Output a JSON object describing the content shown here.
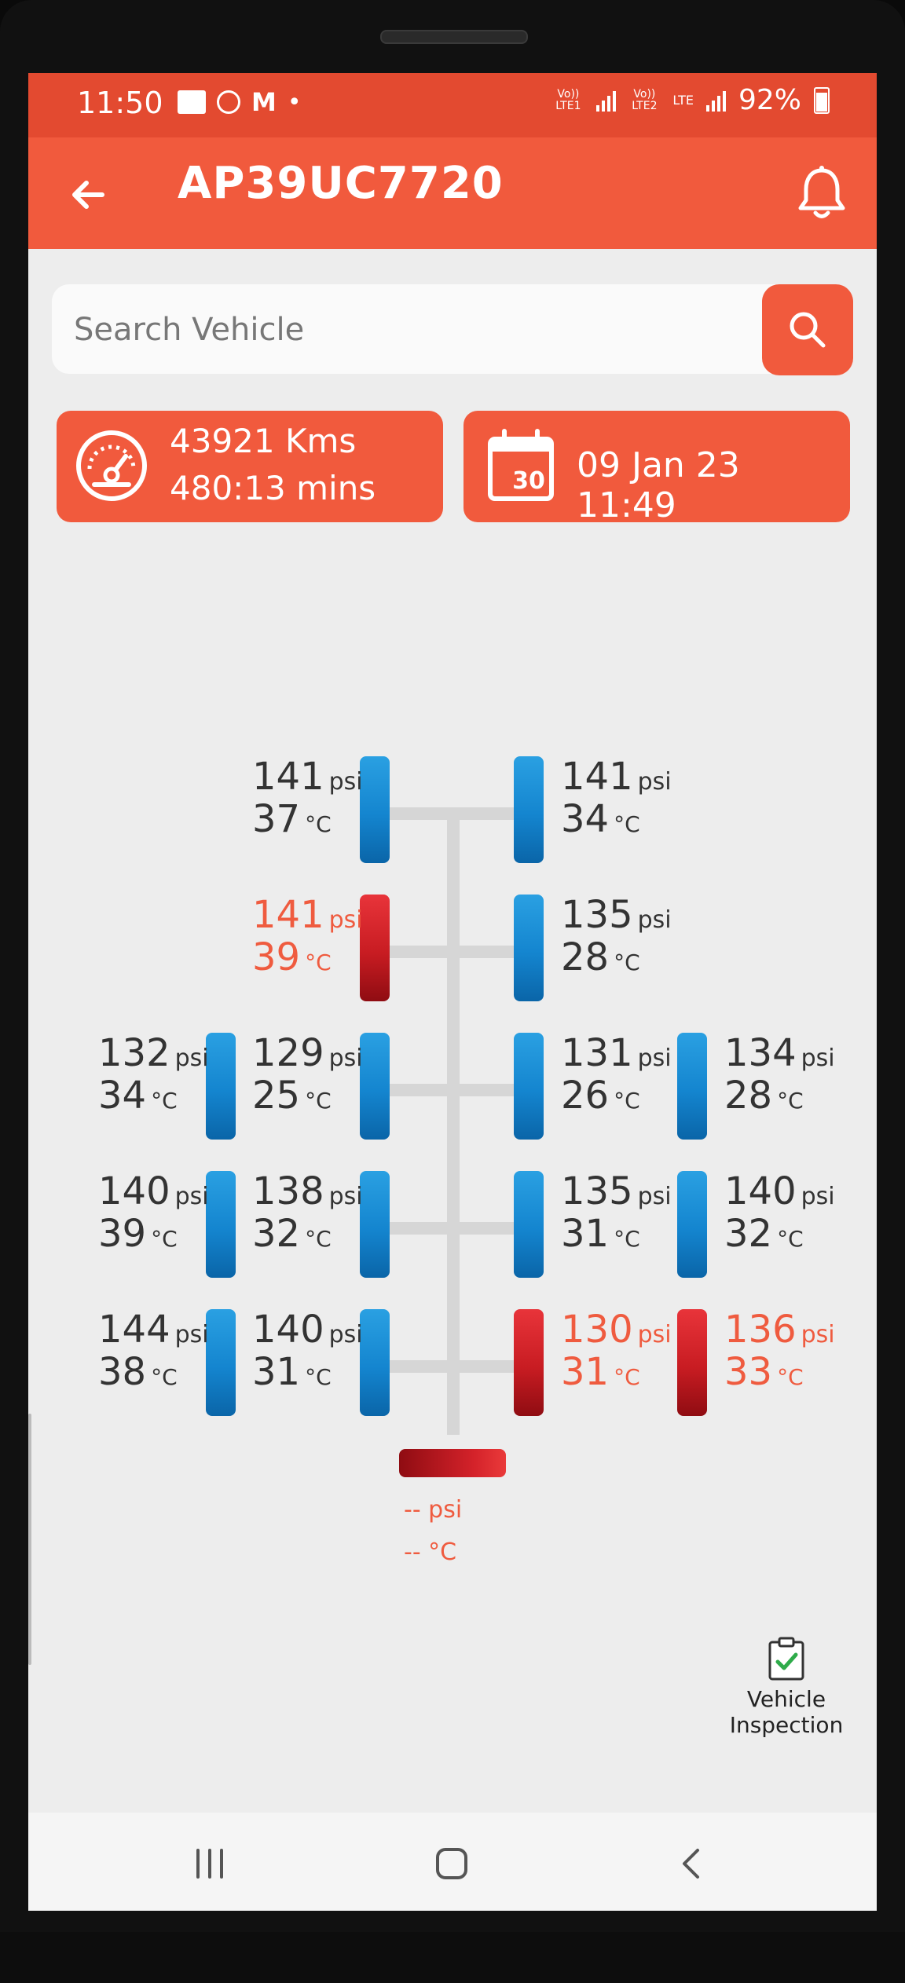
{
  "status_bar": {
    "time": "11:50",
    "network_1": "Vo)) LTE1",
    "network_2": "Vo)) LTE2",
    "network_type": "LTE",
    "battery": "92%"
  },
  "app_bar": {
    "title": "AP39UC7720"
  },
  "search": {
    "placeholder": "Search Vehicle"
  },
  "odometer_card": {
    "distance": "43921 Kms",
    "duration": "480:13 mins"
  },
  "date_card": {
    "calendar_day": "30",
    "timestamp": "09 Jan 23 11:49"
  },
  "units": {
    "pressure": "psi",
    "temperature": "°C"
  },
  "tires": [
    {
      "id": "1L",
      "psi": "141",
      "temp": "37",
      "alert": false
    },
    {
      "id": "1R",
      "psi": "141",
      "temp": "34",
      "alert": false
    },
    {
      "id": "2L",
      "psi": "141",
      "temp": "39",
      "alert": true
    },
    {
      "id": "2R",
      "psi": "135",
      "temp": "28",
      "alert": false
    },
    {
      "id": "3LO",
      "psi": "132",
      "temp": "34",
      "alert": false
    },
    {
      "id": "3LI",
      "psi": "129",
      "temp": "25",
      "alert": false
    },
    {
      "id": "3RI",
      "psi": "131",
      "temp": "26",
      "alert": false
    },
    {
      "id": "3RO",
      "psi": "134",
      "temp": "28",
      "alert": false
    },
    {
      "id": "4LO",
      "psi": "140",
      "temp": "39",
      "alert": false
    },
    {
      "id": "4LI",
      "psi": "138",
      "temp": "32",
      "alert": false
    },
    {
      "id": "4RI",
      "psi": "135",
      "temp": "31",
      "alert": false
    },
    {
      "id": "4RO",
      "psi": "140",
      "temp": "32",
      "alert": false
    },
    {
      "id": "5LO",
      "psi": "144",
      "temp": "38",
      "alert": false
    },
    {
      "id": "5LI",
      "psi": "140",
      "temp": "31",
      "alert": false
    },
    {
      "id": "5RI",
      "psi": "130",
      "temp": "31",
      "alert": true
    },
    {
      "id": "5RO",
      "psi": "136",
      "temp": "33",
      "alert": true
    }
  ],
  "spare": {
    "psi": "-- psi",
    "temp": "-- °C",
    "alert": true
  },
  "inspection": {
    "label_line1": "Vehicle",
    "label_line2": "Inspection"
  },
  "colors": {
    "primary": "#f15a3d",
    "status_bar": "#e34a30",
    "alert_text": "#ef5b3f",
    "tire_ok": "#1485cf",
    "tire_alert": "#c81c22"
  },
  "icons": {
    "back": "arrow-left-icon",
    "bell": "bell-icon",
    "search": "search-icon",
    "speedometer": "speedometer-icon",
    "calendar": "calendar-icon",
    "inspection": "clipboard-check-icon"
  }
}
